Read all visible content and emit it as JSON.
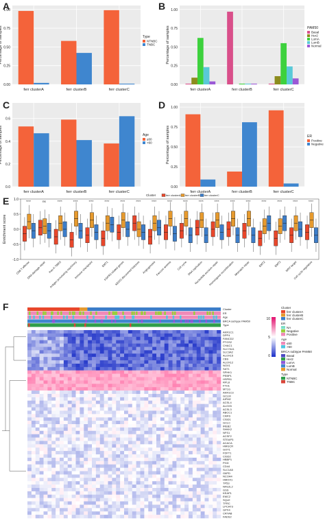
{
  "colors": {
    "cA": "#e8472b",
    "cB": "#e69a2e",
    "cC": "#3c7dc9",
    "ntnbc": "#f4633a",
    "tnbc": "#3f86cf",
    "pos": "#f4633a",
    "neg": "#3f86cf"
  },
  "panel_letters": {
    "A": "A",
    "B": "B",
    "C": "C",
    "D": "D",
    "E": "E",
    "F": "F"
  },
  "chart_data": [
    {
      "id": "A",
      "type": "bar",
      "ylabel": "Percentage of samples",
      "ylim": [
        0,
        1
      ],
      "yticks": [
        "0.00",
        "0.25",
        "0.50",
        "0.75",
        "1.00"
      ],
      "categories": [
        "ferr clusterA",
        "ferr clusterB",
        "ferr clusterC"
      ],
      "legend_title": "Type",
      "series": [
        {
          "name": "NTNBC",
          "color": "#f4633a",
          "values": [
            0.98,
            0.58,
            0.99
          ]
        },
        {
          "name": "TNBC",
          "color": "#3f86cf",
          "values": [
            0.02,
            0.42,
            0.01
          ]
        }
      ]
    },
    {
      "id": "B",
      "type": "bar",
      "ylabel": "Percentage of samples",
      "ylim": [
        0,
        1
      ],
      "yticks": [
        "0.00",
        "0.25",
        "0.50",
        "0.75",
        "1.00"
      ],
      "categories": [
        "ferr clusterA",
        "ferr clusterB",
        "ferr clusterC"
      ],
      "legend_title": "PAM50",
      "series": [
        {
          "name": "Basal",
          "color": "#d94f8a",
          "values": [
            0.01,
            0.97,
            0.01
          ]
        },
        {
          "name": "Her2",
          "color": "#8c8c1e",
          "values": [
            0.09,
            0.0,
            0.11
          ]
        },
        {
          "name": "LumA",
          "color": "#3dd13d",
          "values": [
            0.62,
            0.01,
            0.55
          ]
        },
        {
          "name": "LumB",
          "color": "#59c9d8",
          "values": [
            0.23,
            0.01,
            0.24
          ]
        },
        {
          "name": "Normal",
          "color": "#9b59d6",
          "values": [
            0.04,
            0.01,
            0.08
          ]
        }
      ]
    },
    {
      "id": "C",
      "type": "bar",
      "ylabel": "Percentage of samples",
      "ylim": [
        0,
        0.7
      ],
      "yticks": [
        "0.0",
        "0.2",
        "0.4",
        "0.6"
      ],
      "categories": [
        "ferr clusterA",
        "ferr clusterB",
        "ferr clusterC"
      ],
      "legend_title": "Age",
      "series": [
        {
          "name": "≤60",
          "color": "#f4633a",
          "values": [
            0.53,
            0.59,
            0.38
          ]
        },
        {
          "name": ">60",
          "color": "#3f86cf",
          "values": [
            0.47,
            0.41,
            0.62
          ]
        }
      ]
    },
    {
      "id": "D",
      "type": "bar",
      "ylabel": "Percentage of samples",
      "ylim": [
        0,
        1
      ],
      "yticks": [
        "0.00",
        "0.25",
        "0.50",
        "0.75",
        "1.00"
      ],
      "categories": [
        "ferr clusterA",
        "ferr clusterB",
        "ferr clusterC"
      ],
      "legend_title": "ER",
      "series": [
        {
          "name": "Positive",
          "color": "#f4633a",
          "values": [
            0.91,
            0.19,
            0.96
          ]
        },
        {
          "name": "Negative",
          "color": "#3f86cf",
          "values": [
            0.09,
            0.81,
            0.04
          ]
        }
      ]
    },
    {
      "id": "E",
      "type": "box",
      "ylabel": "Enrichment score",
      "ylim": [
        -1,
        1
      ],
      "yticks": [
        "-1.0",
        "-0.5",
        "0.0",
        "0.5",
        "1.0"
      ],
      "legend_title": "Cluster",
      "legend": [
        "ferr clusterA",
        "ferr clusterB",
        "ferr clusterC"
      ],
      "categories": [
        "CD8 T effector",
        "DNA damage repair",
        "Pan-F-TBRS",
        "Antigen processing machinery",
        "Immune checkpoint",
        "EMT1",
        "FGFR3 related genes",
        "KEGG discovered histones",
        "Angiogenesis",
        "Fanconi anemia",
        "Cell cycle",
        "DNA replication",
        "Nucleotide excision repair",
        "Homologous recombination",
        "Mismatch repair",
        "EMT2",
        "EMT3",
        "WNT target",
        "Cell cycle regulators"
      ],
      "significance": [
        "****",
        "ns",
        "****",
        "****",
        "****",
        "****",
        "****",
        "****",
        "****",
        "****",
        "****",
        "****",
        "****",
        "****",
        "****",
        "****",
        "****",
        "****",
        "****"
      ],
      "series": [
        {
          "name": "ferr clusterA",
          "medians": [
            -0.15,
            0.05,
            -0.25,
            -0.35,
            -0.2,
            -0.3,
            -0.1,
            0.2,
            -0.25,
            -0.1,
            -0.05,
            0.05,
            0.0,
            0.0,
            -0.05,
            -0.3,
            -0.3,
            -0.2,
            -0.1
          ]
        },
        {
          "name": "ferr clusterB",
          "medians": [
            0.25,
            0.1,
            0.2,
            0.35,
            0.3,
            0.2,
            0.3,
            0.0,
            0.2,
            0.35,
            0.35,
            0.3,
            0.3,
            0.35,
            0.35,
            0.1,
            0.1,
            0.2,
            0.3
          ]
        },
        {
          "name": "ferr clusterC",
          "medians": [
            -0.05,
            -0.05,
            0.0,
            -0.05,
            -0.1,
            0.15,
            0.0,
            -0.1,
            0.05,
            -0.15,
            -0.2,
            -0.2,
            -0.1,
            -0.2,
            -0.2,
            0.2,
            0.2,
            0.0,
            -0.2
          ]
        }
      ]
    },
    {
      "id": "F",
      "type": "heatmap",
      "annotation_rows": [
        "Cluster",
        "ER",
        "Age",
        "BRCA subtype PAM50",
        "Type"
      ],
      "genes": [
        "AKR1C1",
        "DPP4",
        "FANCD2",
        "PTGS2",
        "CHAC1",
        "SLC7A11",
        "SLC3A2",
        "ALOX15",
        "CBS",
        "ALOX12",
        "NOX1",
        "SAT1",
        "SPHK1",
        "PEBP1",
        "HSPB1",
        "RPL8",
        "FTH1",
        "MT1G",
        "AKR1C3",
        "GCLM",
        "AIFM2",
        "ACSL4",
        "ALOX5",
        "ACSL3",
        "ABCC1",
        "CARS",
        "CISD1",
        "GCLC",
        "IREB2",
        "SHKK2",
        "NFS1",
        "ACSF2",
        "STEAP3",
        "ACACA",
        "HMGCR",
        "GOT1",
        "FDFT1",
        "CISD2",
        "HBBP1",
        "PGD",
        "CD44",
        "SLC1A5",
        "G6PD",
        "NCOA4",
        "HMOX1",
        "TP53",
        "NFE2L2",
        "GSS",
        "KEAP1",
        "EMC2",
        "SQLE",
        "TFRC",
        "LPCAT3",
        "GPX4",
        "CRYAB",
        "FADS2"
      ],
      "legend_value_ticks": [
        "10",
        "5",
        "0"
      ],
      "legends": [
        {
          "title": "Cluster",
          "items": [
            {
              "label": "ferr clusterA",
              "color": "#e8472b"
            },
            {
              "label": "ferr clusterB",
              "color": "#e69a2e"
            },
            {
              "label": "ferr clusterC",
              "color": "#3c7dc9"
            }
          ]
        },
        {
          "title": "ER",
          "items": [
            {
              "label": "NA",
              "color": "#7ee0c7"
            },
            {
              "label": "Negative",
              "color": "#9bcf3a"
            },
            {
              "label": "Positive",
              "color": "#f08ab8"
            }
          ]
        },
        {
          "title": "Age",
          "items": [
            {
              "label": "≤60",
              "color": "#f08ab8"
            },
            {
              "label": ">60",
              "color": "#4fc6e0"
            }
          ]
        },
        {
          "title": "BRCA subtype PAM50",
          "items": [
            {
              "label": "Basal",
              "color": "#4b48c2"
            },
            {
              "label": "Her2",
              "color": "#2f9e4a"
            },
            {
              "label": "LumA",
              "color": "#8d58d8"
            },
            {
              "label": "LumB",
              "color": "#3f86cf"
            },
            {
              "label": "Normal",
              "color": "#e69a2e"
            }
          ]
        },
        {
          "title": "Type",
          "items": [
            {
              "label": "NTNBC",
              "color": "#2f9e4a"
            },
            {
              "label": "TNBC",
              "color": "#d9463a"
            }
          ]
        }
      ]
    }
  ]
}
